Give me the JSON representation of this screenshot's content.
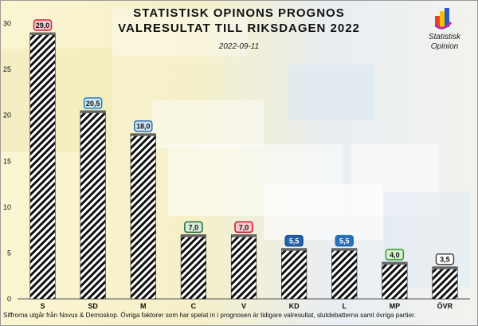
{
  "header": {
    "title_line1": "STATISTISK OPINONS PROGNOS",
    "title_line2": "VALRESULTAT TILL RIKSDAGEN 2022",
    "date": "2022-09-11"
  },
  "logo": {
    "icon": "statistisk-opinion-logo-icon",
    "line1": "Statistisk",
    "line2": "Opinion"
  },
  "footnote": "Siffrorna utgår från Novus & Demoskop. Övriga faktorer som har spelat in i prognosen är tidigare valresultat, slutdebatterna samt övriga partier.",
  "chart_data": {
    "type": "bar",
    "categories": [
      "S",
      "SD",
      "M",
      "C",
      "V",
      "KD",
      "L",
      "MP",
      "ÖVR"
    ],
    "values": [
      29.0,
      20.5,
      18.0,
      7.0,
      7.0,
      5.5,
      5.5,
      4.0,
      3.5
    ],
    "value_labels": [
      "29,0",
      "20,5",
      "18,0",
      "7,0",
      "7,0",
      "5,5",
      "5,5",
      "4,0",
      "3,5"
    ],
    "label_colors": [
      "#d9253a",
      "#1f7fc0",
      "#2a6fb0",
      "#1f6b3a",
      "#c8102e",
      "#1a4f9a",
      "#1f6fb8",
      "#2e9a3a",
      "#444444"
    ],
    "label_fills": [
      "#f7c9cf",
      "#cde8f7",
      "#cfe3f5",
      "#d7ecd9",
      "#f6c8ce",
      "#2560a8",
      "#2a6fb8",
      "#d8efc9",
      "#ffffff"
    ],
    "label_text_colors": [
      "#111111",
      "#111111",
      "#111111",
      "#111111",
      "#111111",
      "#ffffff",
      "#ffffff",
      "#111111",
      "#111111"
    ],
    "yticks": [
      0,
      5,
      10,
      15,
      20,
      25,
      30
    ],
    "ylim": [
      0,
      31
    ],
    "bar_fill": "diagonal-hatch-black-white",
    "grid": false
  }
}
